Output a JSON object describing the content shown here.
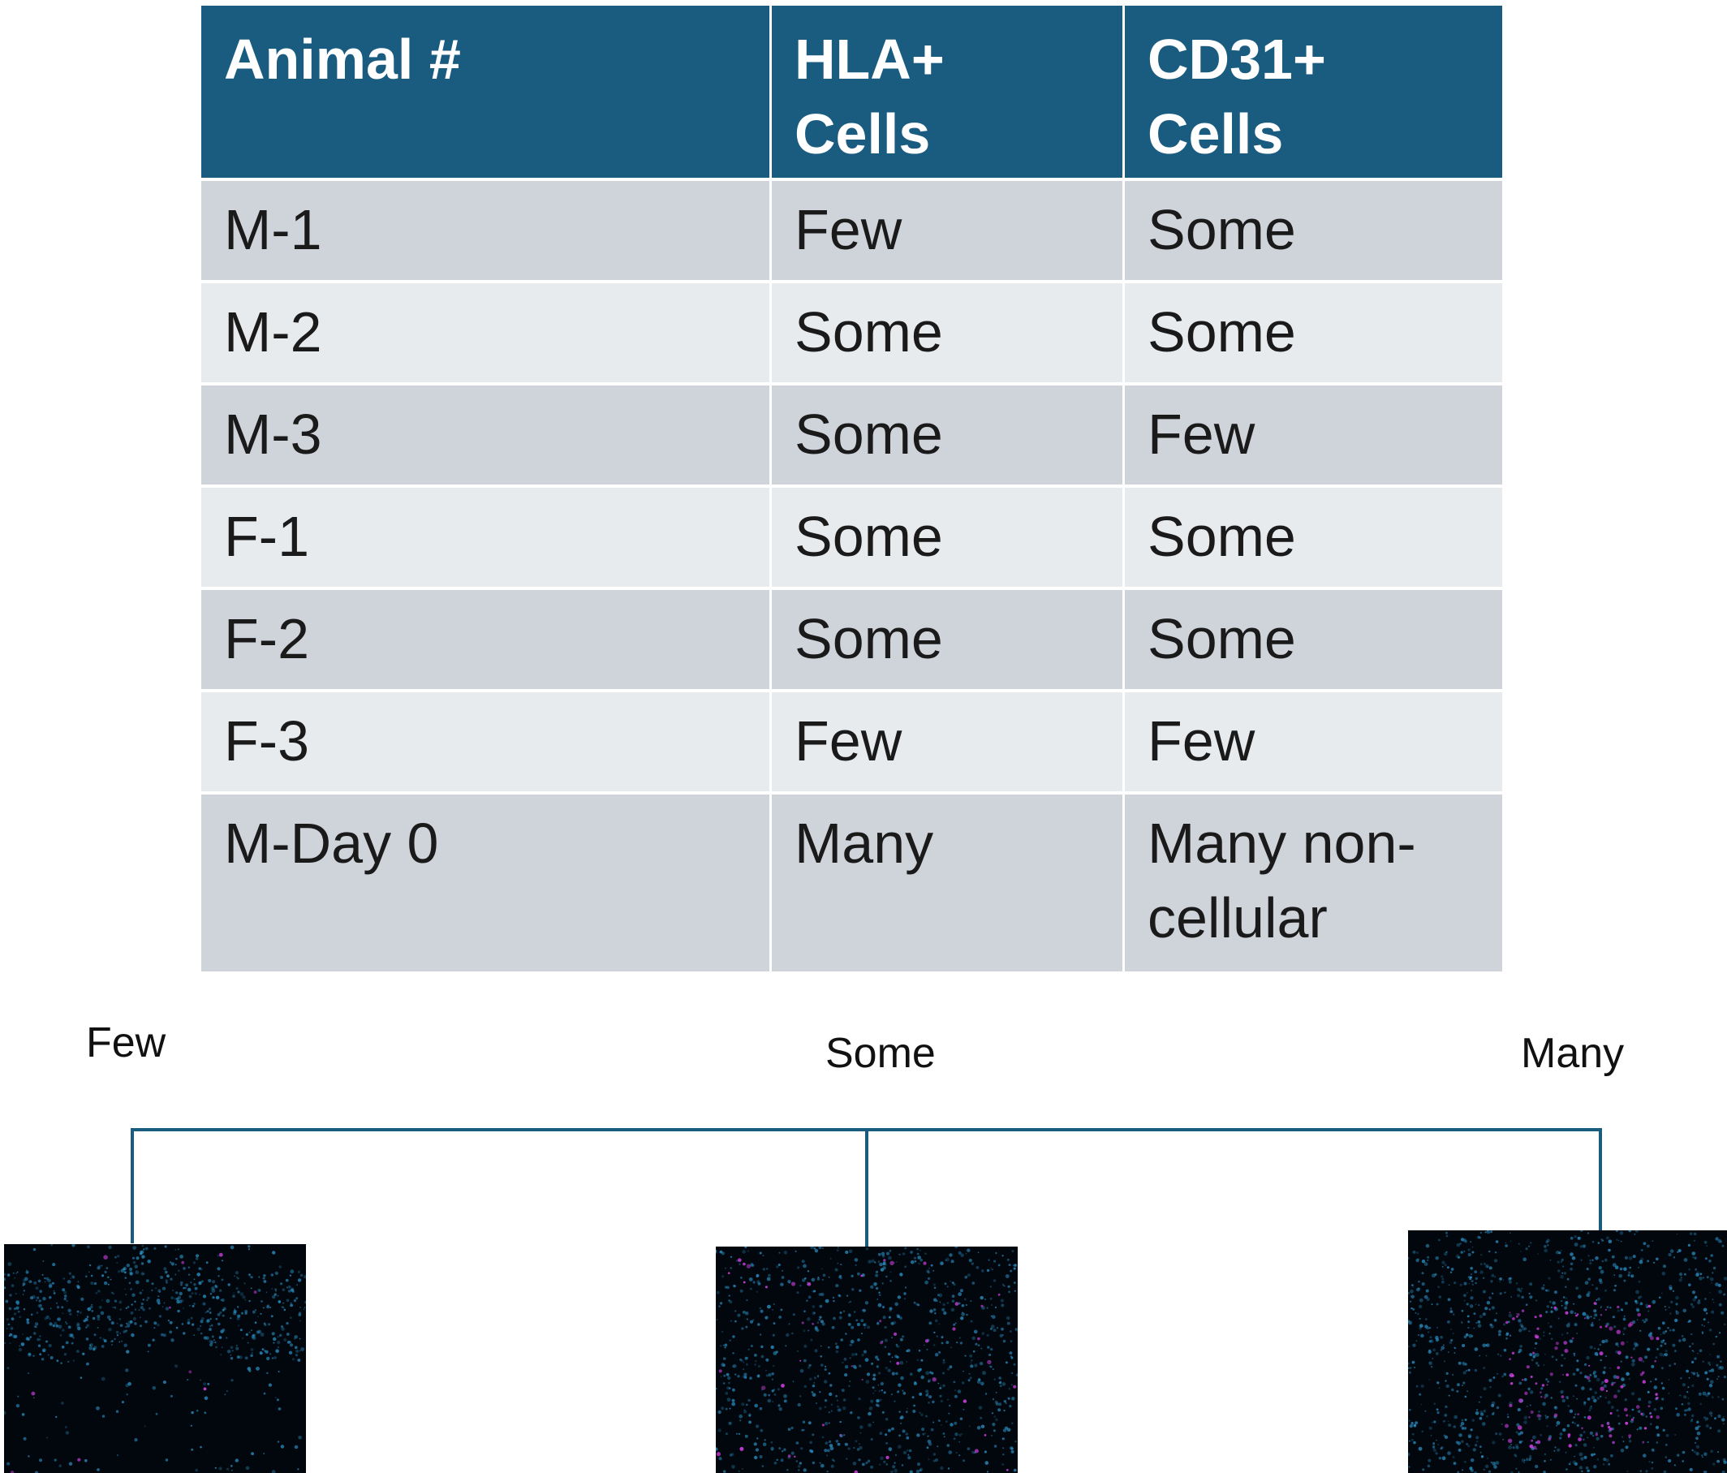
{
  "table": {
    "headers": [
      "Animal #",
      "HLA+ Cells",
      "CD31+ Cells"
    ],
    "rows": [
      [
        "M-1",
        "Few",
        "Some"
      ],
      [
        "M-2",
        "Some",
        "Some"
      ],
      [
        "M-3",
        "Some",
        "Few"
      ],
      [
        "F-1",
        "Some",
        "Some"
      ],
      [
        "F-2",
        "Some",
        "Some"
      ],
      [
        "F-3",
        "Few",
        "Few"
      ],
      [
        "M-Day 0",
        "Many",
        "Many non-cellular"
      ]
    ]
  },
  "legend": {
    "few": "Few",
    "some": "Some",
    "many": "Many"
  },
  "micrographs": [
    {
      "label": "Few",
      "density": "low"
    },
    {
      "label": "Some",
      "density": "medium"
    },
    {
      "label": "Many",
      "density": "high"
    }
  ],
  "colors": {
    "header_bg": "#1a5b80",
    "row_odd": "#cfd4da",
    "row_even": "#e8ebee",
    "connector": "#1a5b80",
    "nuclei": "#2a8fc4",
    "marker": "#c23bd4"
  }
}
